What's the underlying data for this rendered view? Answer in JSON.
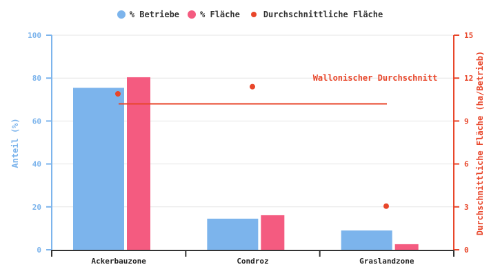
{
  "chart_data": {
    "type": "bar",
    "title": "",
    "categories": [
      "Ackerbauzone",
      "Condroz",
      "Graslandzone"
    ],
    "series": [
      {
        "name": "% Betriebe",
        "type": "bar",
        "axis": "left",
        "color": "#7cb4ec",
        "values": [
          75.5,
          14.5,
          9.0
        ]
      },
      {
        "name": "% Fläche",
        "type": "bar",
        "axis": "left",
        "color": "#f45b80",
        "values": [
          80.4,
          16.1,
          2.6
        ]
      },
      {
        "name": "Durchschnittliche Fläche",
        "type": "scatter",
        "axis": "right",
        "color": "#e8462a",
        "values": [
          10.9,
          11.4,
          3.05
        ]
      }
    ],
    "reference_line": {
      "label": "Wallonischer Durchschnitt",
      "value": 10.2,
      "axis": "right",
      "color": "#e8462a"
    },
    "left_axis": {
      "label": "Anteil (%)",
      "ylim": [
        0,
        100
      ],
      "ticks": [
        0,
        20,
        40,
        60,
        80,
        100
      ],
      "color": "#7cb4ec"
    },
    "right_axis": {
      "label": "Durchschnittliche Fläche (ha/Betrieb)",
      "ylim": [
        0,
        15
      ],
      "ticks": [
        0,
        3,
        6,
        9,
        12,
        15
      ],
      "color": "#e8462a"
    },
    "xlabel": "",
    "grid": true,
    "legend_position": "top"
  },
  "legend": [
    {
      "label": "% Betriebe",
      "color": "#7cb4ec",
      "size": 12
    },
    {
      "label": "% Fläche",
      "color": "#f45b80",
      "size": 12
    },
    {
      "label": "Durchschnittliche Fläche",
      "color": "#e8462a",
      "size": 8
    }
  ]
}
